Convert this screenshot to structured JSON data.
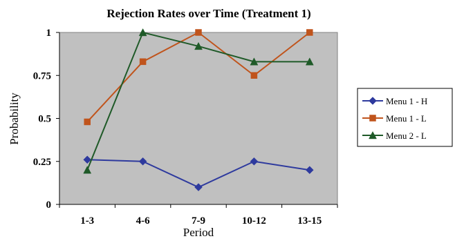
{
  "chart_data": {
    "type": "line",
    "title": "Rejection Rates over Time (Treatment 1)",
    "xlabel": "Period",
    "ylabel": "Probability",
    "categories": [
      "1-3",
      "4-6",
      "7-9",
      "10-12",
      "13-15"
    ],
    "ylim": [
      0,
      1
    ],
    "yticks": [
      0,
      0.25,
      0.5,
      0.75,
      1
    ],
    "ytick_labels": [
      "0",
      "0.25",
      "0.5",
      "0.75",
      "1"
    ],
    "grid": false,
    "plot_background": "#c0c0c0",
    "legend_position": "right",
    "series": [
      {
        "name": "Menu 1 - H",
        "values": [
          0.26,
          0.25,
          0.1,
          0.25,
          0.2
        ],
        "color": "#2e3a9e",
        "marker": "diamond"
      },
      {
        "name": "Menu 1 - L",
        "values": [
          0.48,
          0.83,
          1.0,
          0.75,
          1.0
        ],
        "color": "#c0541c",
        "marker": "square"
      },
      {
        "name": "Menu 2 - L",
        "values": [
          0.2,
          1.0,
          0.92,
          0.83,
          0.83
        ],
        "color": "#1f5a28",
        "marker": "triangle"
      }
    ]
  }
}
